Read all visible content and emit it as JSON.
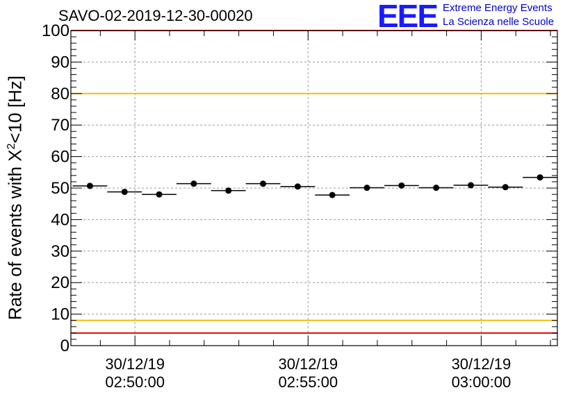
{
  "title": "SAVO-02-2019-12-30-00020",
  "logo": {
    "mark": "EEE",
    "line1": "Extreme Energy Events",
    "line2": "La Scienza nelle Scuole"
  },
  "colors": {
    "threshold_red": "#ee0000",
    "threshold_yellow": "#f0c000",
    "grid": "#999999",
    "marker": "#000000"
  },
  "chart_data": {
    "type": "scatter",
    "title": "SAVO-02-2019-12-30-00020",
    "ylabel_parts": [
      "Rate of events with X",
      "2",
      "<10 [Hz]"
    ],
    "xlabel": "",
    "ylim": [
      0,
      100
    ],
    "y_ticks": [
      "0",
      "10",
      "20",
      "30",
      "40",
      "50",
      "60",
      "70",
      "80",
      "90",
      "100"
    ],
    "x_ticks": [
      {
        "date": "30/12/19",
        "time": "02:50:00",
        "minute": 0
      },
      {
        "date": "30/12/19",
        "time": "02:55:00",
        "minute": 5
      },
      {
        "date": "30/12/19",
        "time": "03:00:00",
        "minute": 10
      }
    ],
    "x_range_minutes": [
      -1.85,
      12.2
    ],
    "bin_width_minutes": 1.0,
    "points": [
      {
        "x": -1.3,
        "y": 50.7
      },
      {
        "x": -0.3,
        "y": 48.8
      },
      {
        "x": 0.7,
        "y": 48.0
      },
      {
        "x": 1.7,
        "y": 51.4
      },
      {
        "x": 2.7,
        "y": 49.2
      },
      {
        "x": 3.7,
        "y": 51.4
      },
      {
        "x": 4.7,
        "y": 50.5
      },
      {
        "x": 5.7,
        "y": 47.8
      },
      {
        "x": 6.7,
        "y": 50.1
      },
      {
        "x": 7.7,
        "y": 50.8
      },
      {
        "x": 8.7,
        "y": 50.1
      },
      {
        "x": 9.7,
        "y": 50.9
      },
      {
        "x": 10.7,
        "y": 50.3
      },
      {
        "x": 11.7,
        "y": 53.4
      }
    ],
    "thresholds": [
      {
        "y": 100,
        "color": "red"
      },
      {
        "y": 80,
        "color": "yellow"
      },
      {
        "y": 8,
        "color": "yellow"
      },
      {
        "y": 4,
        "color": "red"
      }
    ],
    "grid": true
  }
}
